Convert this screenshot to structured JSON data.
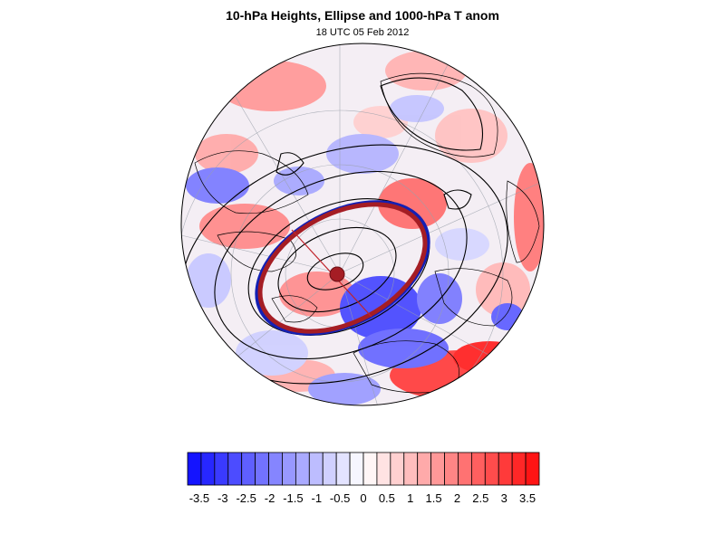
{
  "title": "10-hPa Heights, Ellipse and 1000-hPa T anom",
  "subtitle": "18 UTC 05 Feb 2012",
  "colors": {
    "cold_strong": "#1a14ff",
    "warm_strong": "#ff1414",
    "neutral": "#ffffff",
    "ellipse_fill_edge": "#a51d24",
    "ellipse_blue_edge": "#1420b4",
    "coastline": "#000000",
    "contour": "#000000"
  },
  "colorbar": {
    "levels": 26,
    "labels": [
      "-3.5",
      "-3",
      "-2.5",
      "-2",
      "-1.5",
      "-1",
      "-0.5",
      "0",
      "0.5",
      "1",
      "1.5",
      "2",
      "2.5",
      "3",
      "3.5"
    ],
    "min": -3.75,
    "max": 3.75
  },
  "map": {
    "projection": "orthographic-polar",
    "graticule": true,
    "variable": "1000-hPa temperature anomaly",
    "contour_variable": "10-hPa geopotential height",
    "vortex_ellipse": true
  }
}
